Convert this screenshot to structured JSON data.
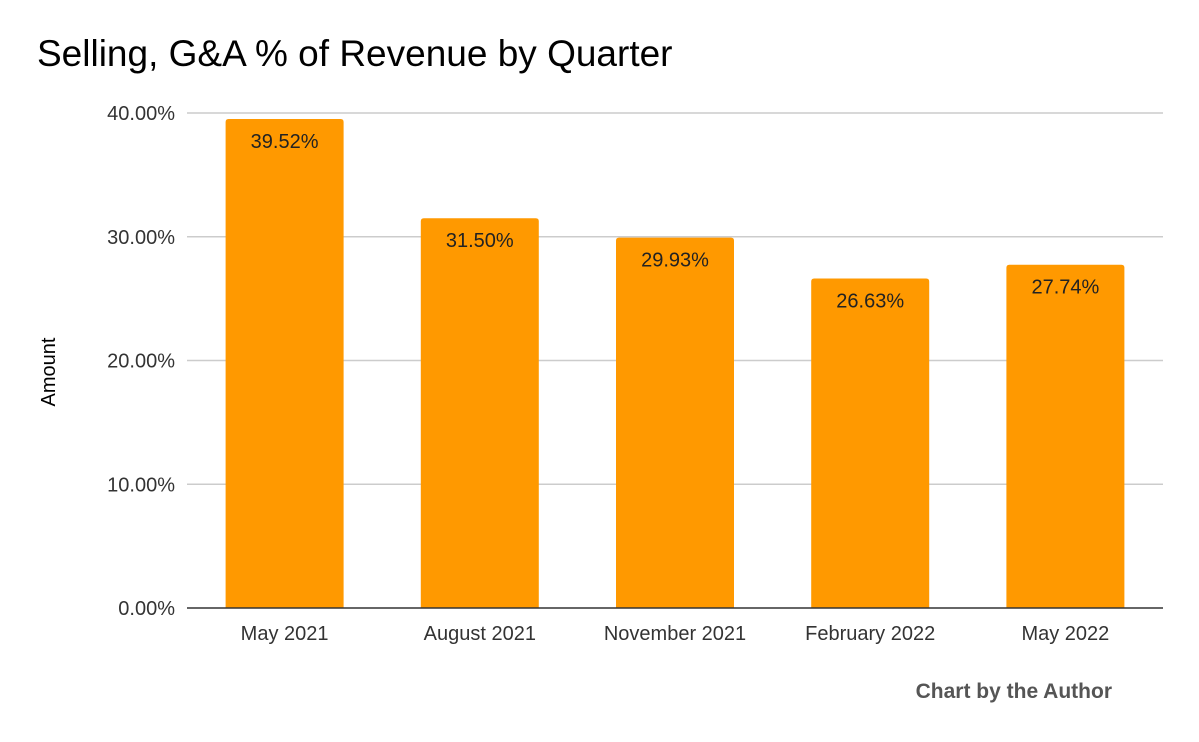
{
  "chart_data": {
    "type": "bar",
    "title": "Selling, G&A % of Revenue by Quarter",
    "xlabel": "",
    "ylabel": "Amount",
    "categories": [
      "May 2021",
      "August 2021",
      "November 2021",
      "February 2022",
      "May 2022"
    ],
    "values": [
      39.52,
      31.5,
      29.93,
      26.63,
      27.74
    ],
    "data_labels": [
      "39.52%",
      "31.50%",
      "29.93%",
      "26.63%",
      "27.74%"
    ],
    "ylim": [
      0,
      40
    ],
    "yticks": [
      0,
      10,
      20,
      30,
      40
    ],
    "ytick_labels": [
      "0.00%",
      "10.00%",
      "20.00%",
      "30.00%",
      "40.00%"
    ],
    "grid": true,
    "legend": "none",
    "bar_color": "#FF9900"
  },
  "footer": "Chart by the Author"
}
